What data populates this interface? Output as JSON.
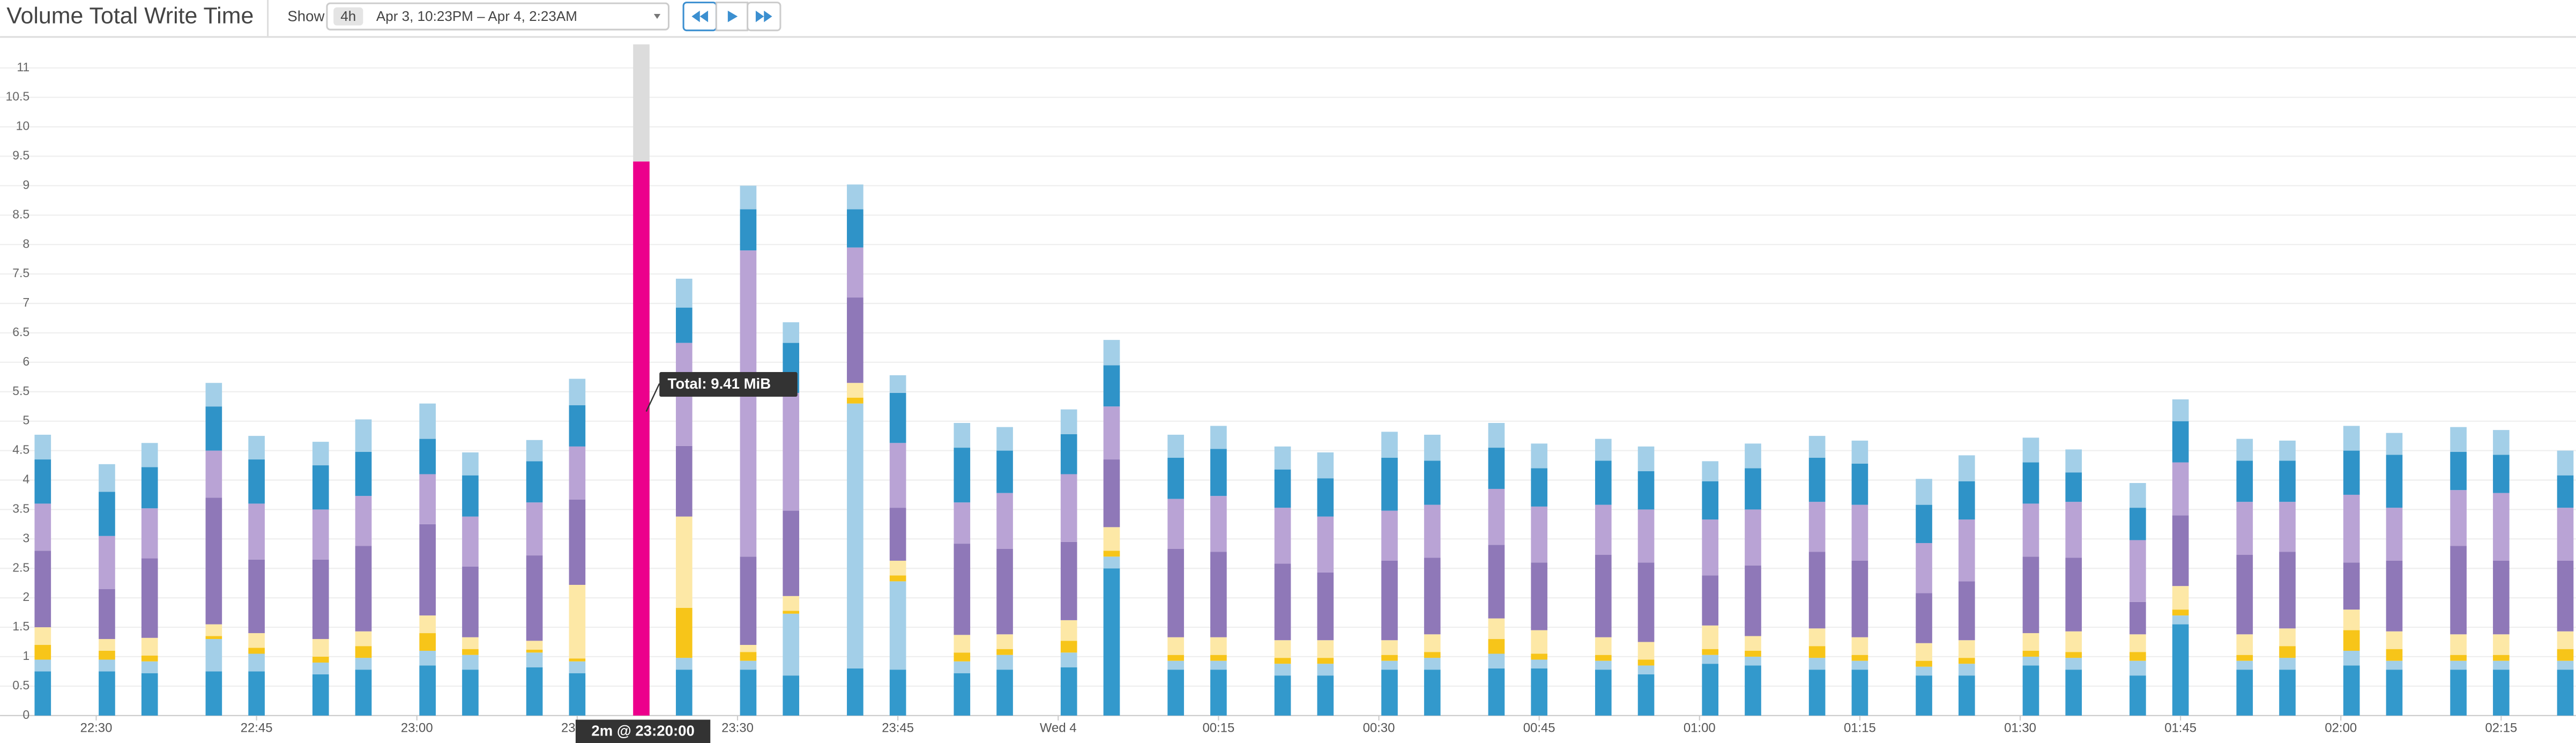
{
  "toolbar": {
    "show_label": "Show",
    "range_badge": "4h",
    "range_text": "Apr 3, 10:23PM – Apr 4, 2:23AM"
  },
  "chart_data": {
    "type": "stacked-bar",
    "title": "Volume Total Write Time",
    "x": [
      "22:24",
      "22:30",
      "22:34",
      "22:40",
      "22:44",
      "22:50",
      "22:54",
      "23:00",
      "23:04",
      "23:10",
      "23:14",
      "23:20",
      "23:24",
      "23:30",
      "23:34",
      "23:40",
      "23:44",
      "23:50",
      "23:54",
      "00:00",
      "00:04",
      "00:10",
      "00:14",
      "00:20",
      "00:24",
      "00:30",
      "00:34",
      "00:40",
      "00:44",
      "00:50",
      "00:54",
      "01:00",
      "01:04",
      "01:10",
      "01:14",
      "01:20",
      "01:24",
      "01:30",
      "01:34",
      "01:40",
      "01:44",
      "01:50",
      "01:54",
      "02:00",
      "02:04",
      "02:10",
      "02:14",
      "02:20"
    ],
    "xlim": [
      "22:21",
      "02:22"
    ],
    "xticks": [
      "22:30",
      "22:45",
      "23:00",
      "23:15",
      "23:30",
      "23:45",
      {
        "value": "00:00",
        "label": "Wed 4"
      },
      "00:15",
      "00:30",
      "00:45",
      "01:00",
      "01:15",
      "01:30",
      "01:45",
      "02:00",
      "02:15"
    ],
    "ylim": [
      0,
      11.4
    ],
    "yticks": [
      0,
      0.5,
      1,
      1.5,
      2,
      2.5,
      3,
      3.5,
      4,
      4.5,
      5,
      5.5,
      6,
      6.5,
      7,
      7.5,
      8,
      8.5,
      9,
      9.5,
      10,
      10.5,
      11
    ],
    "grid": true,
    "series": [
      {
        "color": "#3399cc",
        "values": [
          0.75,
          0.75,
          0.72,
          0.75,
          0.75,
          0.7,
          0.78,
          0.85,
          0.78,
          0.82,
          0.72,
          null,
          0.78,
          0.78,
          0.68,
          0.8,
          0.78,
          0.72,
          0.78,
          0.82,
          2.5,
          0.78,
          0.78,
          0.68,
          0.68,
          0.78,
          0.78,
          0.8,
          0.8,
          0.78,
          0.7,
          0.88,
          0.85,
          0.78,
          0.78,
          0.68,
          0.68,
          0.85,
          0.78,
          0.68,
          1.55,
          0.78,
          0.78,
          0.85,
          0.78,
          0.78,
          0.78,
          0.78
        ]
      },
      {
        "color": "#a3cfe8",
        "values": [
          0.2,
          0.2,
          0.2,
          0.55,
          0.3,
          0.2,
          0.2,
          0.25,
          0.25,
          0.25,
          0.2,
          null,
          0.2,
          0.15,
          1.05,
          4.5,
          1.5,
          0.2,
          0.25,
          0.25,
          0.2,
          0.15,
          0.15,
          0.2,
          0.2,
          0.15,
          0.2,
          0.25,
          0.15,
          0.15,
          0.15,
          0.15,
          0.15,
          0.2,
          0.15,
          0.15,
          0.2,
          0.15,
          0.2,
          0.25,
          0.15,
          0.15,
          0.2,
          0.25,
          0.15,
          0.15,
          0.15,
          0.15
        ]
      },
      {
        "color": "#f7c519",
        "values": [
          0.25,
          0.15,
          0.1,
          0.05,
          0.1,
          0.1,
          0.2,
          0.3,
          0.1,
          0.05,
          0.05,
          null,
          0.85,
          0.15,
          0.05,
          0.1,
          0.1,
          0.15,
          0.1,
          0.2,
          0.1,
          0.1,
          0.1,
          0.1,
          0.1,
          0.1,
          0.1,
          0.25,
          0.1,
          0.1,
          0.1,
          0.1,
          0.1,
          0.2,
          0.1,
          0.1,
          0.1,
          0.1,
          0.1,
          0.15,
          0.1,
          0.1,
          0.2,
          0.35,
          0.2,
          0.1,
          0.1,
          0.2
        ]
      },
      {
        "color": "#fde8a6",
        "values": [
          0.3,
          0.2,
          0.3,
          0.2,
          0.25,
          0.3,
          0.25,
          0.3,
          0.2,
          0.15,
          1.25,
          null,
          1.55,
          0.12,
          0.25,
          0.25,
          0.25,
          0.3,
          0.25,
          0.35,
          0.4,
          0.3,
          0.3,
          0.3,
          0.3,
          0.25,
          0.3,
          0.35,
          0.4,
          0.3,
          0.3,
          0.4,
          0.25,
          0.3,
          0.3,
          0.3,
          0.3,
          0.3,
          0.35,
          0.3,
          0.4,
          0.35,
          0.3,
          0.35,
          0.3,
          0.35,
          0.35,
          0.3
        ]
      },
      {
        "color": "#8f78b8",
        "values": [
          1.3,
          0.85,
          1.35,
          2.15,
          1.25,
          1.35,
          1.45,
          1.55,
          1.2,
          1.45,
          1.45,
          null,
          1.2,
          1.5,
          1.45,
          1.45,
          0.9,
          1.55,
          1.45,
          1.33,
          1.15,
          1.5,
          1.45,
          1.3,
          1.15,
          1.35,
          1.3,
          1.25,
          1.15,
          1.4,
          1.35,
          0.85,
          1.2,
          1.3,
          1.3,
          0.85,
          1.0,
          1.3,
          1.25,
          0.55,
          1.2,
          1.35,
          1.3,
          0.8,
          1.2,
          1.5,
          1.25,
          1.2
        ]
      },
      {
        "color": "#b9a3d5",
        "values": [
          0.8,
          0.9,
          0.85,
          0.8,
          0.95,
          0.85,
          0.85,
          0.85,
          0.85,
          0.9,
          0.9,
          null,
          1.75,
          5.2,
          2.0,
          0.85,
          1.1,
          0.7,
          0.95,
          1.15,
          0.9,
          0.85,
          0.95,
          0.95,
          0.95,
          0.85,
          0.9,
          0.95,
          0.95,
          0.85,
          0.9,
          0.95,
          0.95,
          0.85,
          0.95,
          0.85,
          1.05,
          0.9,
          0.95,
          1.05,
          0.9,
          0.9,
          0.85,
          1.15,
          0.9,
          0.95,
          1.15,
          0.9
        ]
      },
      {
        "color": "#2f93c8",
        "values": [
          0.75,
          0.75,
          0.7,
          0.75,
          0.75,
          0.75,
          0.75,
          0.6,
          0.7,
          0.7,
          0.7,
          null,
          0.6,
          0.7,
          0.85,
          0.65,
          0.85,
          0.93,
          0.72,
          0.68,
          0.7,
          0.7,
          0.8,
          0.65,
          0.65,
          0.9,
          0.75,
          0.7,
          0.65,
          0.75,
          0.65,
          0.65,
          0.7,
          0.75,
          0.7,
          0.65,
          0.65,
          0.7,
          0.5,
          0.55,
          0.7,
          0.7,
          0.7,
          0.75,
          0.9,
          0.65,
          0.65,
          0.55
        ]
      },
      {
        "color": "#a3cfe8",
        "values": [
          0.42,
          0.47,
          0.41,
          0.4,
          0.4,
          0.4,
          0.55,
          0.6,
          0.39,
          0.36,
          0.45,
          null,
          0.49,
          0.4,
          0.35,
          0.42,
          0.3,
          0.42,
          0.4,
          0.42,
          0.43,
          0.39,
          0.39,
          0.39,
          0.44,
          0.44,
          0.44,
          0.42,
          0.42,
          0.37,
          0.42,
          0.34,
          0.42,
          0.37,
          0.39,
          0.44,
          0.44,
          0.42,
          0.39,
          0.42,
          0.37,
          0.37,
          0.34,
          0.42,
          0.37,
          0.42,
          0.42,
          0.42
        ]
      }
    ],
    "highlight": {
      "x": "23:20",
      "value": 9.41,
      "label": "Total: 9.41 MiB",
      "color": "#ec008c",
      "column_color": "#dcdcdc"
    },
    "cursor_label": "2m @ 23:20:00"
  }
}
